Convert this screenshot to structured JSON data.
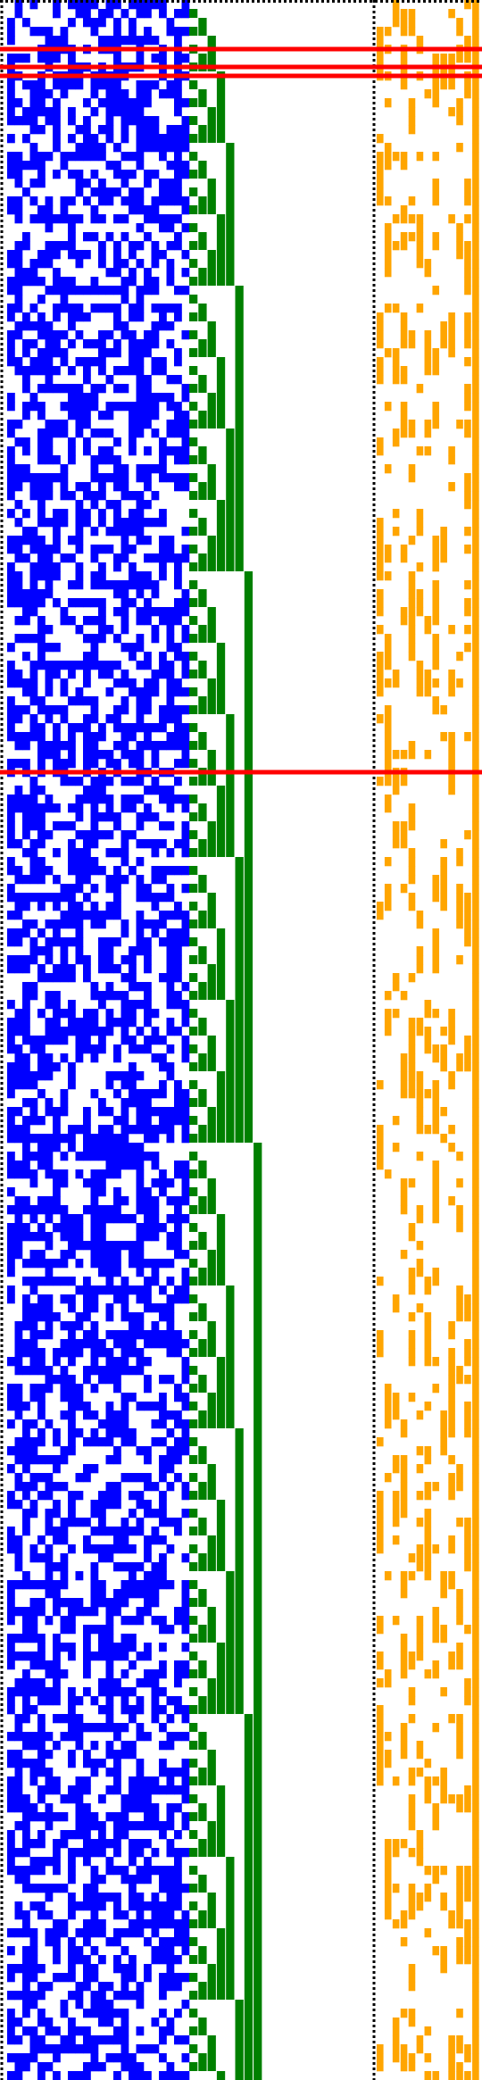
{
  "figure": {
    "description_kind": "binary-matrix visualization",
    "colors": {
      "background": "#ffffff",
      "left_matrix": "#0000ff",
      "middle_bits": "#008000",
      "right_matrix": "#ffa500",
      "highlight_row": "#ff0000",
      "separator": "#000000"
    },
    "grid": {
      "rows": 233,
      "left_columns": 24,
      "middle_columns": 20,
      "right_columns": 13
    },
    "highlighted_rows": [
      5,
      7,
      8,
      86
    ],
    "density": {
      "left_matrix": 0.55,
      "right_matrix": 0.28
    },
    "separator_style": "dotted"
  }
}
